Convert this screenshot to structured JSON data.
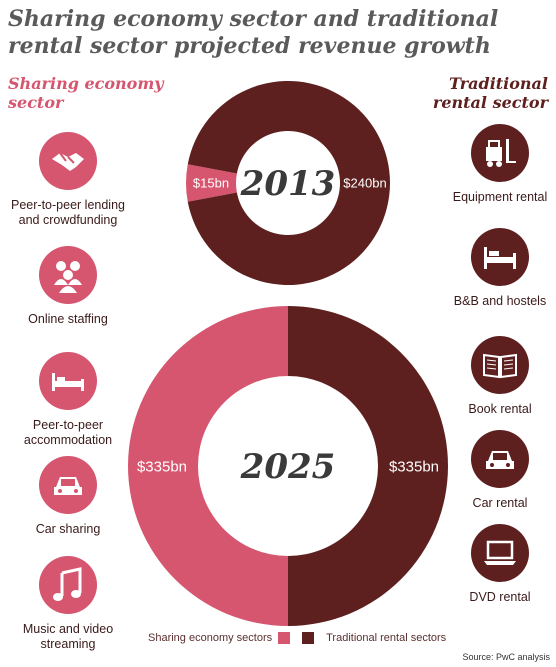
{
  "title": "Sharing economy sector and traditional rental sector projected revenue growth",
  "sharing_heading": "Sharing economy sector",
  "traditional_heading": "Traditional rental sector",
  "sharing_items": [
    {
      "label": "Peer-to-peer lending and crowdfunding",
      "icon": "handshake-icon"
    },
    {
      "label": "Online staffing",
      "icon": "people-icon"
    },
    {
      "label": "Peer-to-peer accommodation",
      "icon": "bed-icon"
    },
    {
      "label": "Car sharing",
      "icon": "car-icon"
    },
    {
      "label": "Music and video streaming",
      "icon": "music-note-icon"
    }
  ],
  "traditional_items": [
    {
      "label": "Equipment rental",
      "icon": "forklift-icon"
    },
    {
      "label": "B&B and hostels",
      "icon": "bed-icon"
    },
    {
      "label": "Book rental",
      "icon": "book-icon"
    },
    {
      "label": "Car rental",
      "icon": "car-icon"
    },
    {
      "label": "DVD rental",
      "icon": "laptop-icon"
    }
  ],
  "colors": {
    "sharing": "#d6556f",
    "traditional": "#5e1f1f"
  },
  "chart_data": [
    {
      "type": "pie",
      "title": "2013",
      "categories": [
        "Sharing economy sectors",
        "Traditional rental sectors"
      ],
      "values": [
        15,
        240
      ],
      "value_labels": [
        "$15bn",
        "$240bn"
      ]
    },
    {
      "type": "pie",
      "title": "2025",
      "categories": [
        "Sharing economy sectors",
        "Traditional rental sectors"
      ],
      "values": [
        335,
        335
      ],
      "value_labels": [
        "$335bn",
        "$335bn"
      ]
    }
  ],
  "legend": {
    "sharing": "Sharing economy sectors",
    "traditional": "Traditional rental sectors"
  },
  "source": "Source: PwC analysis"
}
